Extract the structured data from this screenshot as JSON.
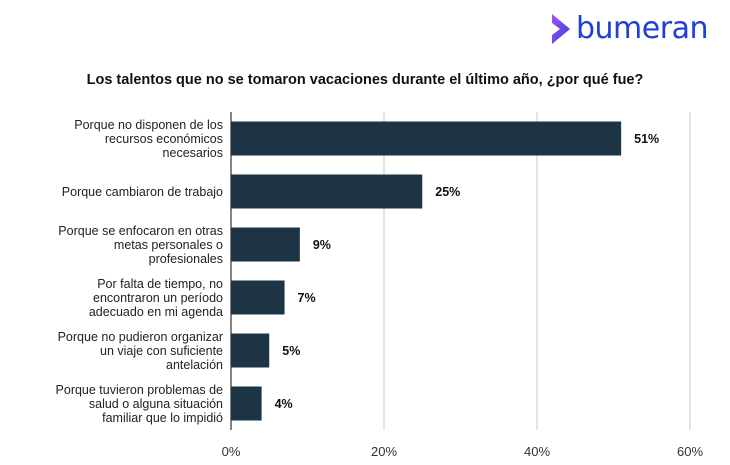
{
  "brand": {
    "name": "bumeran",
    "color": "#1f3fd6"
  },
  "chart_data": {
    "type": "bar",
    "orientation": "horizontal",
    "title": "Los talentos que no se tomaron vacaciones durante el último año, ¿por qué fue?",
    "categories": [
      "Porque no disponen de los recursos económicos necesarios",
      "Porque cambiaron de trabajo",
      "Porque se enfocaron en otras metas personales o profesionales",
      "Por falta de tiempo, no encontraron un período adecuado en mi agenda",
      "Porque no pudieron organizar un viaje con suficiente antelación",
      "Porque tuvieron problemas de salud o alguna situación familiar que lo impidió"
    ],
    "category_lines": [
      [
        "Porque no disponen de los",
        "recursos económicos",
        "necesarios"
      ],
      [
        "Porque cambiaron de trabajo"
      ],
      [
        "Porque se enfocaron en otras",
        "metas personales o",
        "profesionales"
      ],
      [
        "Por falta de tiempo, no",
        "encontraron un período",
        "adecuado en mi agenda"
      ],
      [
        "Porque no pudieron organizar",
        "un viaje con suficiente",
        "antelación"
      ],
      [
        "Porque tuvieron problemas de",
        "salud o alguna situación",
        "familiar que lo impidió"
      ]
    ],
    "values": [
      51,
      25,
      9,
      7,
      5,
      4
    ],
    "data_labels": [
      "51%",
      "25%",
      "9%",
      "7%",
      "5%",
      "4%"
    ],
    "xlim": [
      0,
      60
    ],
    "x_ticks": [
      0,
      20,
      40,
      60
    ],
    "x_tick_labels": [
      "0%",
      "20%",
      "40%",
      "60%"
    ],
    "grid": true,
    "bar_color": "#1d3445"
  }
}
